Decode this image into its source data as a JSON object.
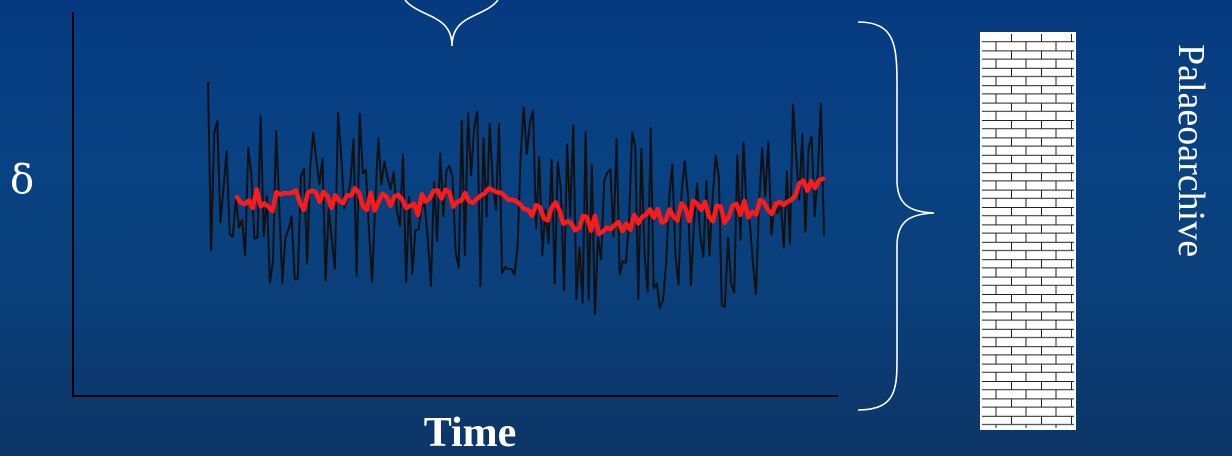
{
  "labels": {
    "y_axis": "δ",
    "x_axis": "Time",
    "archive": "Palaeoarchive"
  },
  "colors": {
    "background": "#084283",
    "raw_series": "#111111",
    "smoothed_series": "#ff1a1a",
    "axes": "#000000",
    "brace": "#ffffff",
    "archive_fill": "#ffffff",
    "archive_lines": "#222222"
  }
}
